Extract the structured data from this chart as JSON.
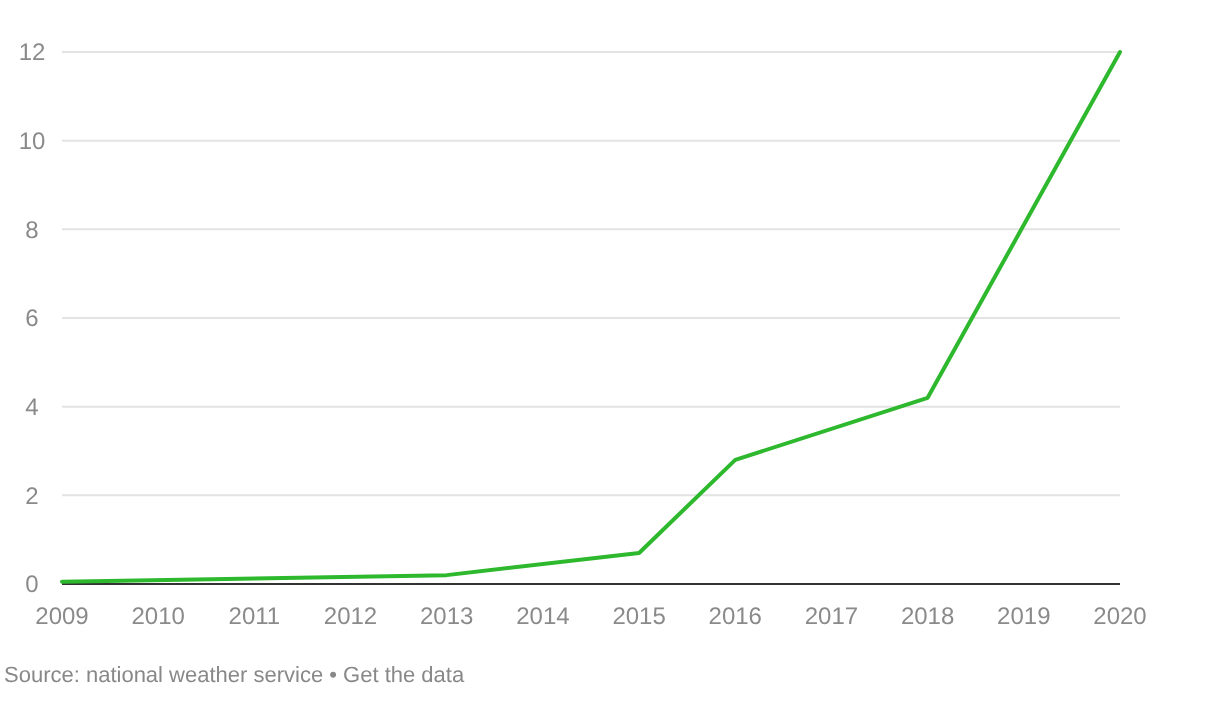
{
  "chart_data": {
    "type": "line",
    "x": [
      2009,
      2013,
      2015,
      2016,
      2018,
      2020
    ],
    "series": [
      {
        "color": "#2eb82e",
        "values": [
          0.05,
          0.2,
          0.7,
          2.8,
          4.2,
          12
        ]
      }
    ],
    "xlim": [
      2009,
      2020
    ],
    "xticks": [
      2009,
      2010,
      2011,
      2012,
      2013,
      2014,
      2015,
      2016,
      2017,
      2018,
      2019,
      2020
    ],
    "ylim": [
      0,
      12
    ],
    "yticks": [
      0,
      2,
      4,
      6,
      8,
      10,
      12
    ],
    "grid": "y",
    "marker": "none",
    "line_style": "solid",
    "annotations": [
      "Source: national weather service • Get the data"
    ]
  }
}
